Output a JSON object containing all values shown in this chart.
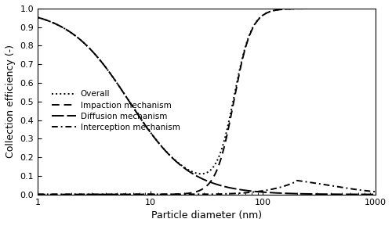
{
  "xlabel": "Particle diameter (nm)",
  "ylabel": "Collection efficiency (-)",
  "xlim": [
    1,
    1000
  ],
  "ylim": [
    0,
    1.0
  ],
  "yticks": [
    0,
    0.1,
    0.2,
    0.3,
    0.4,
    0.5,
    0.6,
    0.7,
    0.8,
    0.9,
    1.0
  ],
  "legend_labels": [
    "Overall",
    "Impaction mechanism",
    "Diffusion mechanism",
    "Interception mechanism"
  ],
  "line_styles": [
    "dotted",
    "dashed",
    "solid_long_dash",
    "dash_dot"
  ],
  "line_color": "#000000",
  "background_color": "#ffffff"
}
